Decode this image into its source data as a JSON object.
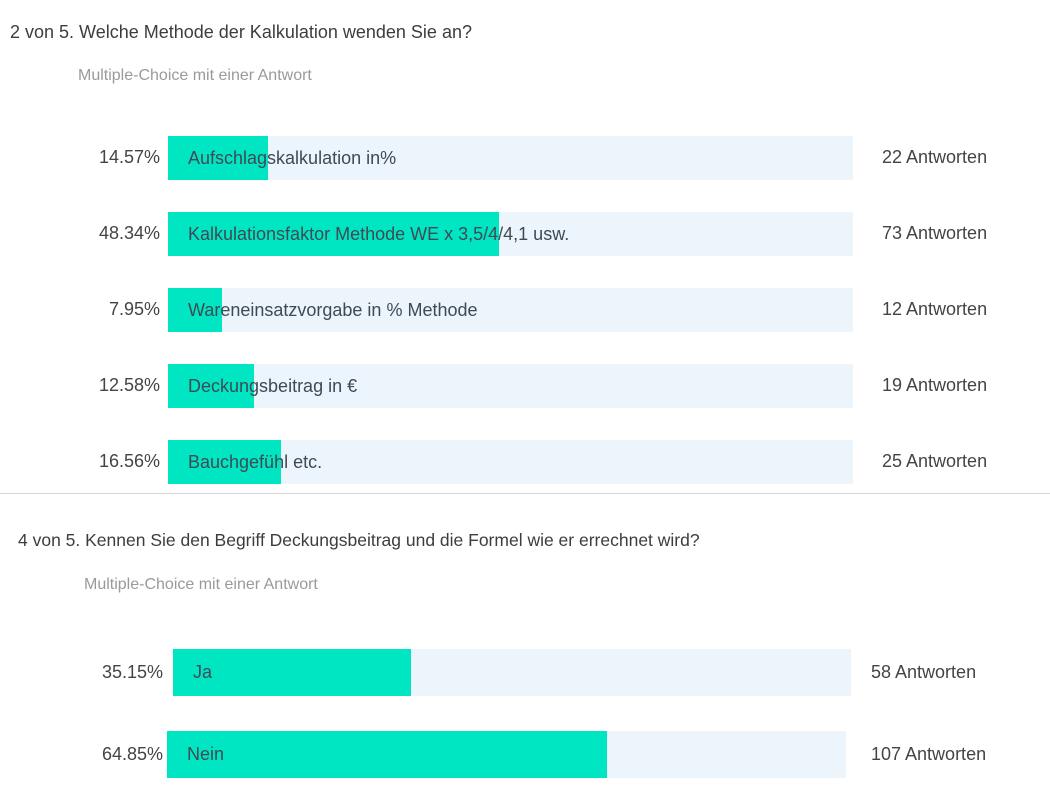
{
  "colors": {
    "fill": "#00e6c3",
    "track": "#edf5fc",
    "text": "#444444"
  },
  "chart_data": [
    {
      "type": "bar",
      "orientation": "horizontal",
      "title": "2 von 5. Welche Methode der Kalkulation wenden Sie an?",
      "subtitle": "Multiple-Choice mit einer Antwort",
      "xlim": [
        0,
        100
      ],
      "categories": [
        "Aufschlagskalkulation in%",
        "Kalkulationsfaktor Methode WE x 3,5/4/4,1 usw.",
        "Wareneinsatzvorgabe in % Methode",
        "Deckungsbeitrag in €",
        "Bauchgefühl etc."
      ],
      "values": [
        14.57,
        48.34,
        7.95,
        12.58,
        16.56
      ],
      "percent_labels": [
        "14.57%",
        "48.34%",
        "7.95%",
        "12.58%",
        "16.56%"
      ],
      "count_labels": [
        "22 Antworten",
        "73 Antworten",
        "12 Antworten",
        "19 Antworten",
        "25 Antworten"
      ]
    },
    {
      "type": "bar",
      "orientation": "horizontal",
      "title": "4 von 5. Kennen Sie den Begriff Deckungsbeitrag und die Formel wie er errechnet wird?",
      "subtitle": "Multiple-Choice mit einer Antwort",
      "xlim": [
        0,
        100
      ],
      "categories": [
        "Ja",
        "Nein"
      ],
      "values": [
        35.15,
        64.85
      ],
      "percent_labels": [
        "35.15%",
        "64.85%"
      ],
      "count_labels": [
        "58 Antworten",
        "107 Antworten"
      ]
    }
  ]
}
